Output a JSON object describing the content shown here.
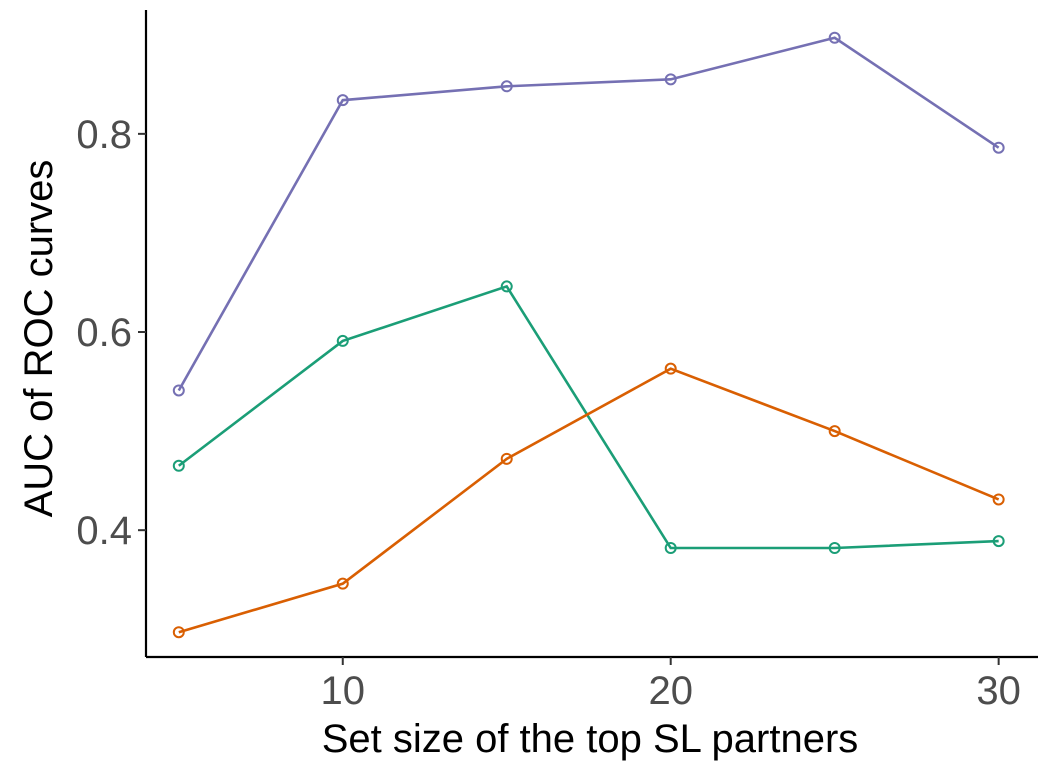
{
  "chart_data": {
    "type": "line",
    "xlabel": "Set size of the top SL partners",
    "ylabel": "AUC of ROC curves",
    "xlim": [
      4,
      31.2
    ],
    "ylim": [
      0.272,
      0.925
    ],
    "x_ticks": [
      10,
      20,
      30
    ],
    "y_ticks": [
      0.4,
      0.6,
      0.8
    ],
    "x_tick_labels": [
      "10",
      "20",
      "30"
    ],
    "y_tick_labels": [
      "0.4",
      "0.6",
      "0.8"
    ],
    "grid": false,
    "legend": "none",
    "x": [
      5,
      10,
      15,
      20,
      25,
      30
    ],
    "series": [
      {
        "color": "#7570b3",
        "values": [
          0.541,
          0.834,
          0.848,
          0.855,
          0.897,
          0.786
        ]
      },
      {
        "color": "#1b9e77",
        "values": [
          0.465,
          0.591,
          0.646,
          0.382,
          0.382,
          0.389
        ]
      },
      {
        "color": "#d95f02",
        "values": [
          0.297,
          0.346,
          0.472,
          0.563,
          0.5,
          0.431
        ]
      }
    ]
  }
}
